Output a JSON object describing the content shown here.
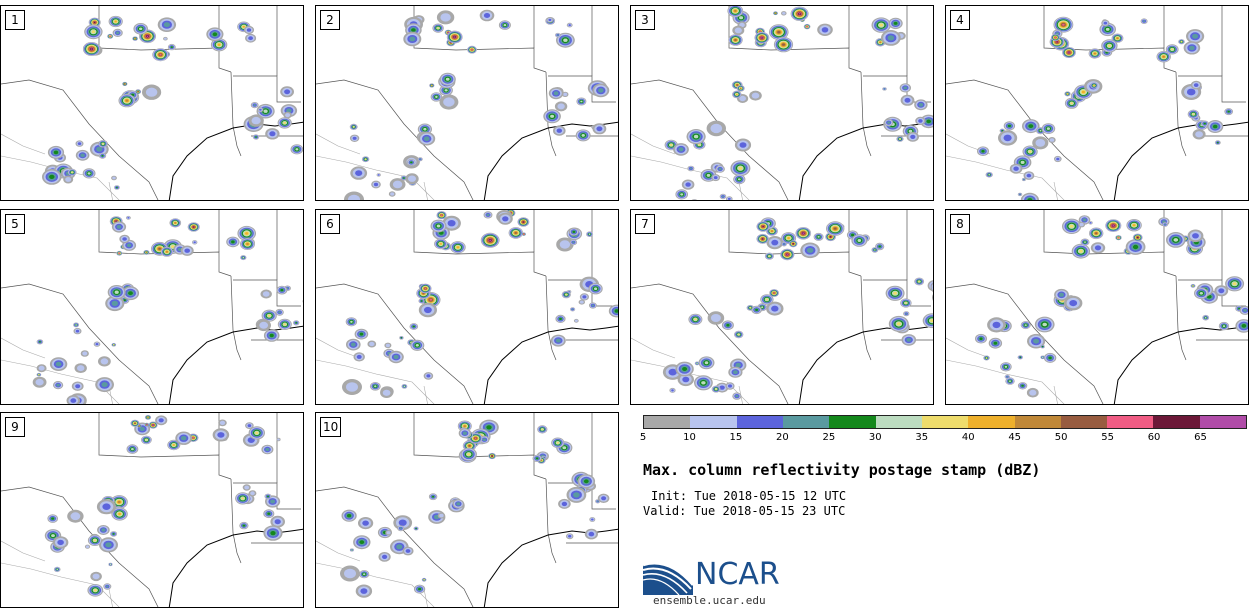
{
  "panels": [
    {
      "label": "1"
    },
    {
      "label": "2"
    },
    {
      "label": "3"
    },
    {
      "label": "4"
    },
    {
      "label": "5"
    },
    {
      "label": "6"
    },
    {
      "label": "7"
    },
    {
      "label": "8"
    },
    {
      "label": "9"
    },
    {
      "label": "10"
    }
  ],
  "legend": {
    "ticks": [
      "5",
      "10",
      "15",
      "20",
      "25",
      "30",
      "35",
      "40",
      "45",
      "50",
      "55",
      "60",
      "65"
    ],
    "colors": [
      "#a8a8a8",
      "#b8c4ee",
      "#5c64dc",
      "#5a9aa0",
      "#14881c",
      "#bcdcc0",
      "#eedc6c",
      "#eeb02c",
      "#c08838",
      "#985c40",
      "#f05c84",
      "#6c1838",
      "#b04ca8"
    ]
  },
  "title": "Max. column reflectivity postage stamp (dBZ)",
  "init": "Init: Tue 2018-05-15 12 UTC",
  "valid": "Valid: Tue 2018-05-15 23 UTC",
  "logo": {
    "text": "NCAR",
    "url": "ensemble.ucar.edu"
  }
}
